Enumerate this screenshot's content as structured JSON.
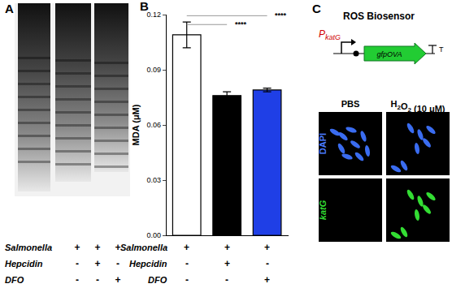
{
  "chart_data": {
    "type": "bar",
    "title": "B",
    "ylabel": "MDA (μM)",
    "categories": [
      null,
      null,
      null
    ],
    "values": [
      0.109,
      0.076,
      0.079
    ],
    "errors": [
      0.007,
      0.002,
      0.001
    ],
    "colors": [
      "#ffffff",
      "#000000",
      "#1f3fe6"
    ],
    "ylim": [
      0,
      0.12
    ],
    "yticks": [
      {
        "value": 0,
        "label": "0.00"
      },
      0.03,
      0.06,
      0.09,
      0.12
    ],
    "grid": false,
    "conditions": [
      {
        "name": "Salmonella",
        "values": [
          "+",
          "+",
          "+"
        ]
      },
      {
        "name": "Hepcidin",
        "values": [
          "-",
          "+",
          "-"
        ]
      },
      {
        "name": "DFO",
        "values": [
          "-",
          "-",
          "+"
        ]
      }
    ],
    "significance": [
      {
        "from": 0,
        "to": 1,
        "label": "****"
      },
      {
        "from": 0,
        "to": 2,
        "label": "****"
      }
    ]
  },
  "panel_a": {
    "title": "A",
    "conditions": [
      {
        "name": "Salmonella",
        "values": [
          "+",
          "+",
          "+"
        ]
      },
      {
        "name": "Hepcidin",
        "values": [
          "-",
          "+",
          "-"
        ]
      },
      {
        "name": "DFO",
        "values": [
          "-",
          "-",
          "+"
        ]
      }
    ]
  },
  "panel_c": {
    "title": "C",
    "diagram_title": "ROS Biosensor",
    "promoter": "P",
    "promoter_subscript": "katG",
    "gene": "gfpOVA",
    "terminator": "T",
    "columns": [
      "PBS",
      "H2O2 (10 μM)"
    ],
    "rows": [
      "DAPI",
      "katG"
    ]
  }
}
